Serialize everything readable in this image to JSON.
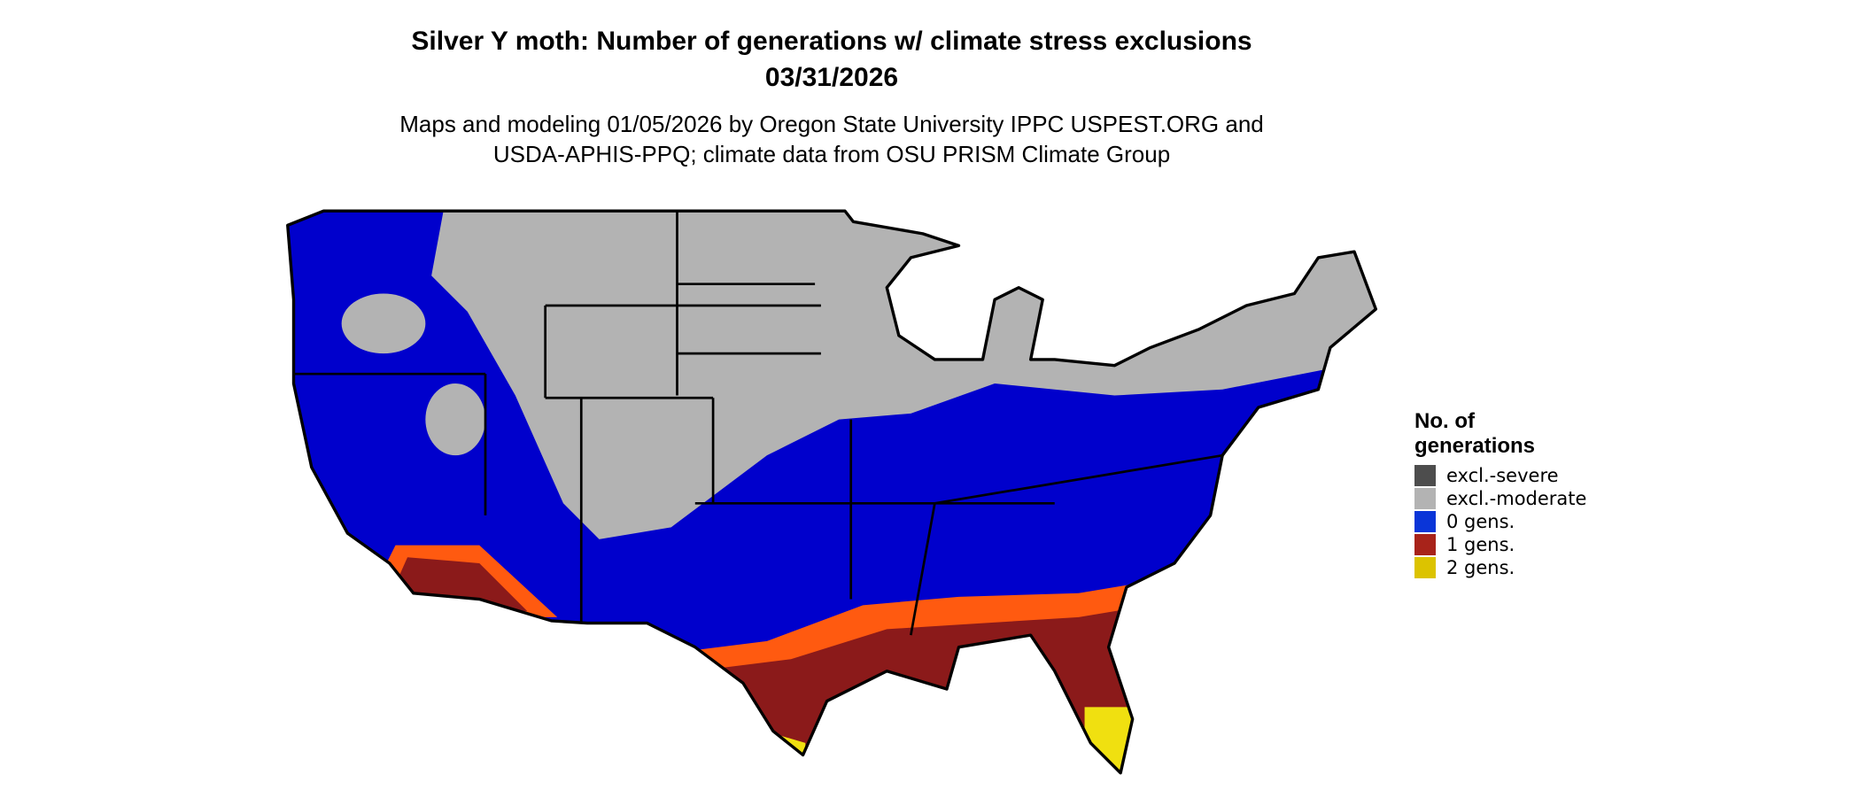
{
  "title": [
    "Silver Y moth: Number of generations w/ climate stress exclusions",
    "03/31/2026"
  ],
  "subtitle": [
    "Maps and modeling 01/05/2026 by Oregon State University IPPC USPEST.ORG and",
    "USDA-APHIS-PPQ; climate data from OSU PRISM Climate Group"
  ],
  "legend": {
    "title": [
      "No. of",
      "generations"
    ],
    "items": [
      {
        "label": "excl.-severe",
        "color": "#4d4d4d"
      },
      {
        "label": "excl.-moderate",
        "color": "#b3b3b3"
      },
      {
        "label": "0 gens.",
        "color": "#0a35d8"
      },
      {
        "label": "1 gens.",
        "color": "#a8231a"
      },
      {
        "label": "2 gens.",
        "color": "#dcc300"
      }
    ]
  }
}
